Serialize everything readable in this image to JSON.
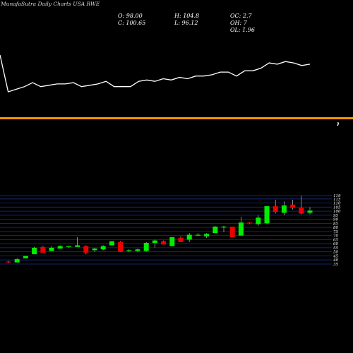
{
  "header": {
    "brand": "MunafaSutra Daily Charts",
    "symbol": "USA RWE",
    "open": "O: 98.00",
    "close": "C: 100.65",
    "high": "H: 104.8",
    "low": "L: 96.12",
    "oc": "OC: 2.7",
    "oh": "OH: 7",
    "ol": "OL: 1.96"
  },
  "colors": {
    "background": "#000000",
    "up": "#00ee00",
    "down": "#ee0000",
    "accent_bar": "#ff9400",
    "grid": "#1c2f80",
    "line": "#ffffff"
  },
  "chart_data": [
    {
      "type": "line",
      "title": "",
      "xlabel": "",
      "ylabel": "",
      "grid": false,
      "y": [
        62,
        48,
        49,
        50,
        51.5,
        50,
        50.5,
        51,
        51,
        51.5,
        50,
        50.5,
        51,
        52,
        50,
        50,
        50,
        52,
        52.5,
        52,
        53,
        52.5,
        53.5,
        53,
        54,
        54,
        54.5,
        55.5,
        55.5,
        54,
        56,
        56,
        57,
        59,
        58.5,
        59.5,
        59,
        58,
        58.5
      ],
      "ylim": [
        40,
        70
      ]
    },
    {
      "type": "candlestick",
      "title": "",
      "xlabel": "",
      "ylabel": "",
      "grid": true,
      "yticks": [
        35,
        40,
        45,
        50,
        55,
        60,
        65,
        70,
        75,
        80,
        85,
        90,
        95,
        100,
        105,
        110,
        115,
        119
      ],
      "ylim": [
        35,
        120
      ],
      "candles": [
        {
          "o": 38,
          "h": 39,
          "l": 36,
          "c": 37
        },
        {
          "o": 37,
          "h": 42,
          "l": 37,
          "c": 41
        },
        {
          "o": 42,
          "h": 45,
          "l": 42,
          "c": 45
        },
        {
          "o": 47,
          "h": 56,
          "l": 47,
          "c": 55
        },
        {
          "o": 56,
          "h": 57,
          "l": 49,
          "c": 49
        },
        {
          "o": 51,
          "h": 57,
          "l": 51,
          "c": 55
        },
        {
          "o": 54,
          "h": 58,
          "l": 54,
          "c": 57
        },
        {
          "o": 56,
          "h": 57,
          "l": 55,
          "c": 57
        },
        {
          "o": 56,
          "h": 68,
          "l": 56,
          "c": 58
        },
        {
          "o": 57,
          "h": 58,
          "l": 47,
          "c": 49
        },
        {
          "o": 52,
          "h": 55,
          "l": 50,
          "c": 54
        },
        {
          "o": 53,
          "h": 58,
          "l": 52,
          "c": 57
        },
        {
          "o": 58,
          "h": 63,
          "l": 58,
          "c": 63
        },
        {
          "o": 62,
          "h": 63,
          "l": 50,
          "c": 50
        },
        {
          "o": 51,
          "h": 53,
          "l": 50,
          "c": 52
        },
        {
          "o": 51,
          "h": 54,
          "l": 50,
          "c": 53
        },
        {
          "o": 51,
          "h": 62,
          "l": 50,
          "c": 61
        },
        {
          "o": 61,
          "h": 65,
          "l": 55,
          "c": 64
        },
        {
          "o": 63,
          "h": 64,
          "l": 59,
          "c": 59
        },
        {
          "o": 57,
          "h": 68,
          "l": 57,
          "c": 68
        },
        {
          "o": 67,
          "h": 69,
          "l": 62,
          "c": 62
        },
        {
          "o": 65,
          "h": 73,
          "l": 62,
          "c": 71
        },
        {
          "o": 71,
          "h": 73,
          "l": 70,
          "c": 71
        },
        {
          "o": 69,
          "h": 73,
          "l": 67,
          "c": 72
        },
        {
          "o": 73,
          "h": 82,
          "l": 73,
          "c": 81
        },
        {
          "o": 80,
          "h": 82,
          "l": 74,
          "c": 81
        },
        {
          "o": 81,
          "h": 81,
          "l": 68,
          "c": 68
        },
        {
          "o": 70,
          "h": 93,
          "l": 70,
          "c": 86
        },
        {
          "o": 86,
          "h": 86,
          "l": 84,
          "c": 85
        },
        {
          "o": 84,
          "h": 95,
          "l": 82,
          "c": 92
        },
        {
          "o": 85,
          "h": 106,
          "l": 84,
          "c": 106
        },
        {
          "o": 106,
          "h": 114,
          "l": 97,
          "c": 99
        },
        {
          "o": 98,
          "h": 112,
          "l": 95,
          "c": 107
        },
        {
          "o": 108,
          "h": 114,
          "l": 102,
          "c": 104
        },
        {
          "o": 104,
          "h": 119,
          "l": 96,
          "c": 97
        },
        {
          "o": 98,
          "h": 104.8,
          "l": 96.12,
          "c": 100.65
        }
      ]
    }
  ]
}
